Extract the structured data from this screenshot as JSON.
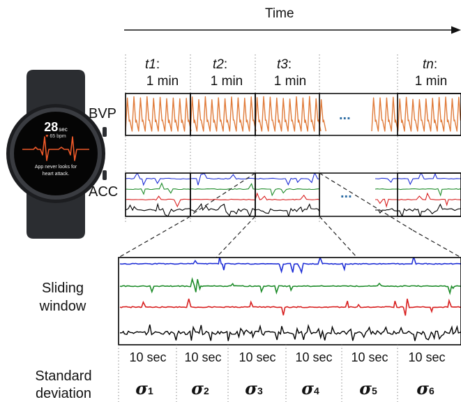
{
  "time_axis": {
    "label": "Time"
  },
  "segments": [
    {
      "name": "t1",
      "duration": "1 min"
    },
    {
      "name": "t2",
      "duration": "1 min"
    },
    {
      "name": "t3",
      "duration": "1 min"
    },
    {
      "name": "tn",
      "duration": "1 min"
    }
  ],
  "row_labels": {
    "bvp": "BVP",
    "acc": "ACC",
    "ellipsis": "..."
  },
  "sliding": {
    "label_line1": "Sliding",
    "label_line2": "window",
    "windows": [
      "10 sec",
      "10 sec",
      "10 sec",
      "10 sec",
      "10 sec",
      "10 sec"
    ]
  },
  "std": {
    "label_line1": "Standard",
    "label_line2": "deviation",
    "symbol": "σ",
    "subscripts": [
      "1",
      "2",
      "3",
      "4",
      "5",
      "6"
    ]
  },
  "watch": {
    "time": "28",
    "time_unit": "sec",
    "bpm": "65 bpm",
    "message_line1": "App never looks for",
    "message_line2": "heart attack."
  },
  "colors": {
    "bvp": "#e07b3a",
    "acc_x": "#1f2fd6",
    "acc_y": "#1e8c2a",
    "acc_z": "#d81f1f",
    "acc_mag": "#000000",
    "ellipsis": "#2e6da4"
  }
}
